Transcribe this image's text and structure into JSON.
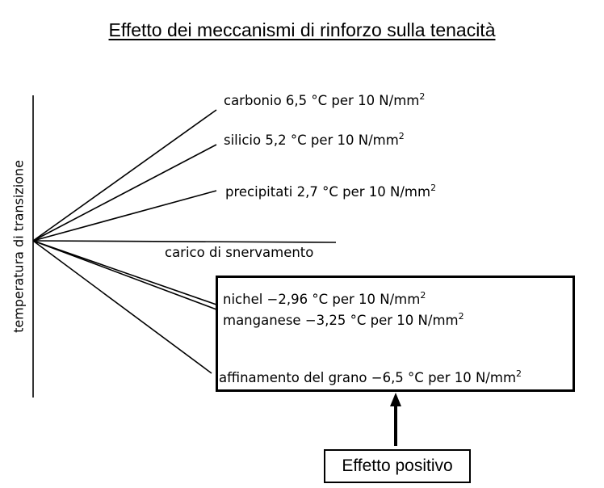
{
  "title": "Effetto dei meccanismi di rinforzo sulla tenacità",
  "y_axis_label": "temperatura di transizione",
  "x_axis_label": "carico di snervamento",
  "elements": [
    {
      "name": "carbonio",
      "text": "carbonio 6,5 °C per 10 N/mm",
      "sup": "2",
      "effect_value": 6.5
    },
    {
      "name": "silicio",
      "text": "silicio 5,2 °C per 10 N/mm",
      "sup": "2",
      "effect_value": 5.2
    },
    {
      "name": "precipitati",
      "text": "precipitati 2,7 °C per 10 N/mm",
      "sup": "2",
      "effect_value": 2.7
    },
    {
      "name": "nichel",
      "text": "nichel −2,96 °C per 10 N/mm",
      "sup": "2",
      "effect_value": -2.96
    },
    {
      "name": "manganese",
      "text": "manganese −3,25 °C per 10 N/mm",
      "sup": "2",
      "effect_value": -3.25
    },
    {
      "name": "affinamento",
      "text": "affinamento del grano −6,5 °C per 10 N/mm",
      "sup": "2",
      "effect_value": -6.5
    }
  ],
  "positive_effect_label": "Effetto positivo"
}
